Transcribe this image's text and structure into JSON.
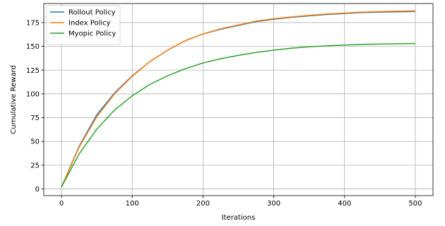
{
  "chart_data": {
    "type": "line",
    "xlabel": "Iterations",
    "ylabel": "Cumulative Reward",
    "xlim": [
      -25,
      525
    ],
    "ylim": [
      -7,
      195
    ],
    "xticks": [
      0,
      100,
      200,
      300,
      400,
      500
    ],
    "yticks": [
      0,
      25,
      50,
      75,
      100,
      125,
      150,
      175
    ],
    "grid": true,
    "legend_position": "top-left",
    "x": [
      0,
      25,
      50,
      75,
      100,
      125,
      150,
      175,
      200,
      225,
      250,
      275,
      300,
      325,
      350,
      375,
      400,
      425,
      450,
      475,
      500
    ],
    "series": [
      {
        "name": "Rollout Policy",
        "color": "#1f77b4",
        "values": [
          2,
          45,
          78,
          101,
          119,
          134,
          146,
          156,
          163,
          168,
          172,
          176,
          178.5,
          180.5,
          182,
          183.5,
          184.5,
          185.5,
          186,
          186.3,
          186.6
        ]
      },
      {
        "name": "Index Policy",
        "color": "#ff7f0e",
        "values": [
          2,
          44,
          76,
          100,
          118.5,
          134,
          146,
          156,
          163,
          168.5,
          172.5,
          176.5,
          179,
          181,
          182.5,
          184,
          185,
          186,
          186.5,
          187,
          187.3
        ]
      },
      {
        "name": "Myopic Policy",
        "color": "#2ca02c",
        "values": [
          2,
          37,
          63,
          83,
          98,
          110,
          119,
          126.5,
          132.5,
          137,
          140.5,
          143.5,
          146,
          148,
          149.5,
          150.5,
          151.3,
          152,
          152.4,
          152.7,
          153
        ]
      }
    ]
  }
}
